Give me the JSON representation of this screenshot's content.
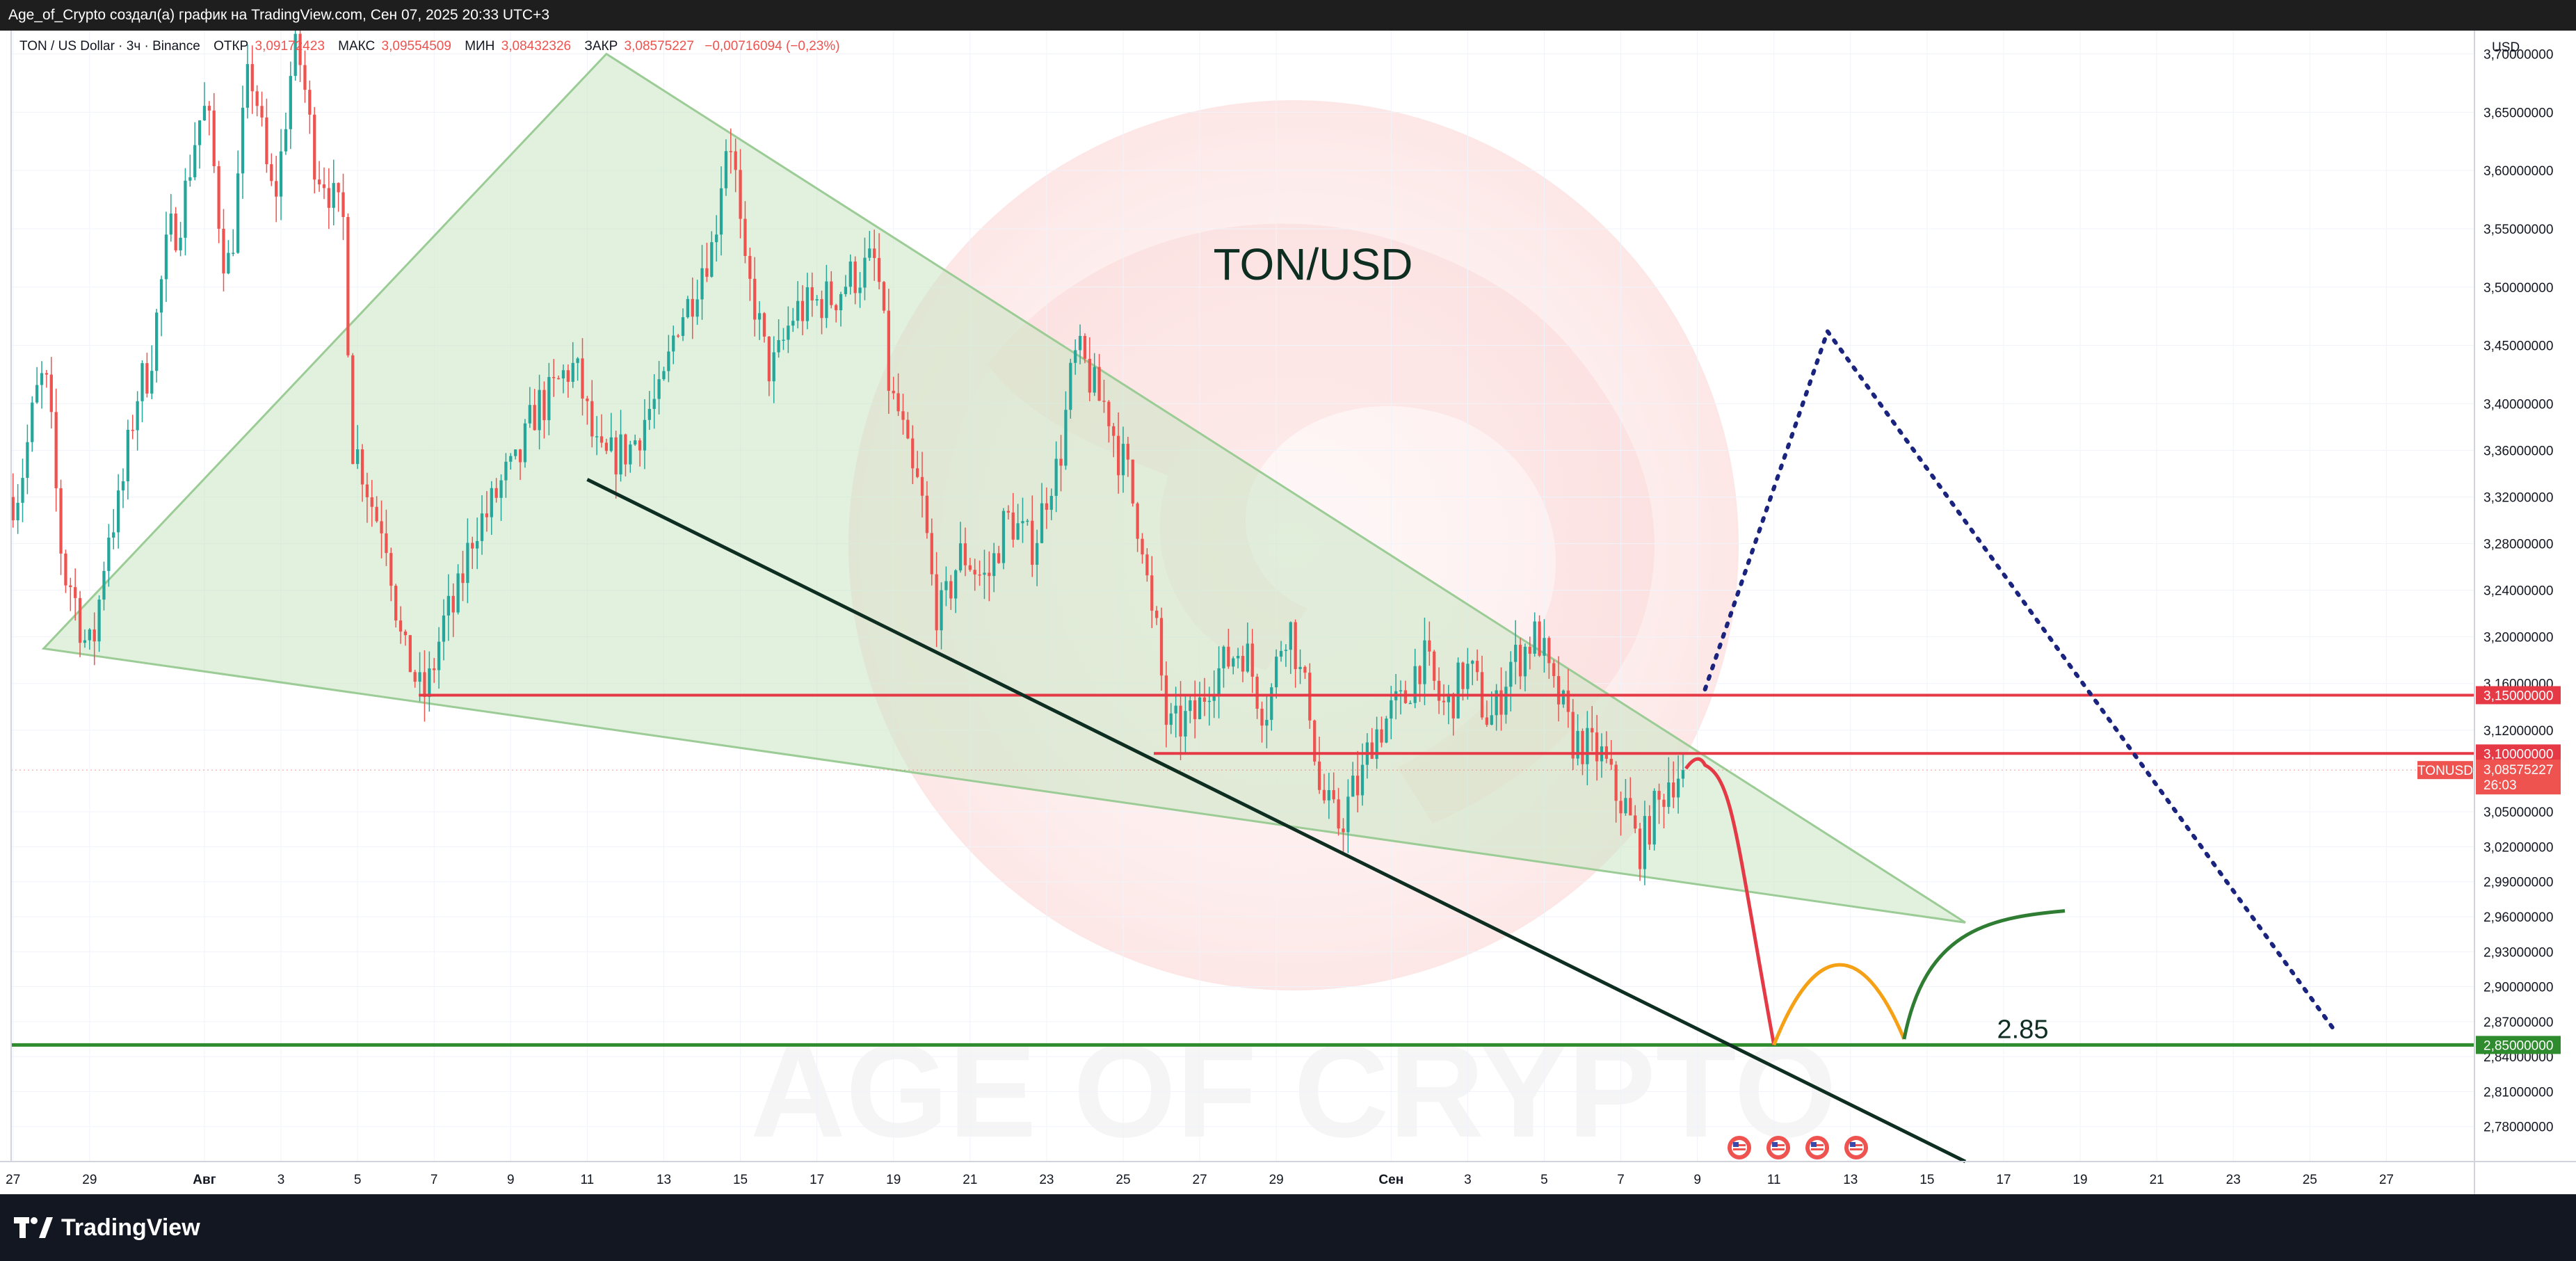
{
  "header": {
    "attribution": "Age_of_Crypto создал(а) график на TradingView.com, Сен 07, 2025 20:33 UTC+3"
  },
  "legend": {
    "symbol": "TON / US Dollar · 3ч · Binance",
    "open_label": "ОТКР",
    "open_value": "3,09172423",
    "high_label": "МАКС",
    "high_value": "3,09554509",
    "low_label": "МИН",
    "low_value": "3,08432326",
    "close_label": "ЗАКР",
    "close_value": "3,08575227",
    "change": "−0,00716094 (−0,23%)"
  },
  "currency_label": "USD",
  "colors": {
    "up": "#26a69a",
    "down": "#ef5350",
    "triangle_fill": "#c8e6c3",
    "triangle_stroke": "#9ccc96",
    "resistance": "#e53945",
    "support": "#2e8b2e",
    "trendline": "#0e2e22",
    "projection_red": "#e53945",
    "projection_orange": "#f5a015",
    "projection_green": "#2e7d32",
    "projection_blue": "#1a237e"
  },
  "chart_data": {
    "type": "line",
    "title": "TON/USD",
    "watermark": "AGE OF CRYPTO",
    "ylim": [
      2.75,
      3.72
    ],
    "y_ticks": [
      "3,70000000",
      "3,65000000",
      "3,60000000",
      "3,55000000",
      "3,50000000",
      "3,45000000",
      "3,40000000",
      "3,36000000",
      "3,32000000",
      "3,28000000",
      "3,24000000",
      "3,20000000",
      "3,16000000",
      "3,12000000",
      "3,05000000",
      "3,02000000",
      "2,99000000",
      "2,96000000",
      "2,93000000",
      "2,90000000",
      "2,87000000",
      "2,84000000",
      "2,81000000",
      "2,78000000"
    ],
    "y_tick_values": [
      3.7,
      3.65,
      3.6,
      3.55,
      3.5,
      3.45,
      3.4,
      3.36,
      3.32,
      3.28,
      3.24,
      3.2,
      3.16,
      3.12,
      3.05,
      3.02,
      2.99,
      2.96,
      2.93,
      2.9,
      2.87,
      2.84,
      2.81,
      2.78
    ],
    "x_ticks": [
      "27",
      "29",
      "Авг",
      "3",
      "5",
      "7",
      "9",
      "11",
      "13",
      "15",
      "17",
      "19",
      "21",
      "23",
      "25",
      "27",
      "29",
      "Сен",
      "3",
      "5",
      "7",
      "9",
      "11",
      "13",
      "15",
      "17",
      "19",
      "21",
      "23",
      "25",
      "27"
    ],
    "x_tick_days": [
      -5,
      -3,
      0,
      2,
      4,
      6,
      8,
      10,
      12,
      14,
      16,
      18,
      20,
      22,
      24,
      26,
      28,
      31,
      33,
      35,
      37,
      39,
      41,
      43,
      45,
      47,
      49,
      51,
      53,
      55,
      57
    ],
    "x_range_days": [
      -5.05,
      59.3
    ],
    "price_anchors": [
      [
        -5.0,
        3.32
      ],
      [
        -4.2,
        3.42
      ],
      [
        -3.6,
        3.25
      ],
      [
        -3.0,
        3.19
      ],
      [
        -2.4,
        3.3
      ],
      [
        -1.6,
        3.42
      ],
      [
        -0.8,
        3.55
      ],
      [
        0.0,
        3.65
      ],
      [
        0.6,
        3.52
      ],
      [
        1.2,
        3.68
      ],
      [
        1.8,
        3.58
      ],
      [
        2.4,
        3.7
      ],
      [
        3.0,
        3.6
      ],
      [
        3.6,
        3.56
      ],
      [
        3.9,
        3.36
      ],
      [
        4.6,
        3.3
      ],
      [
        5.3,
        3.18
      ],
      [
        5.7,
        3.15
      ],
      [
        6.4,
        3.22
      ],
      [
        7.2,
        3.3
      ],
      [
        8.0,
        3.34
      ],
      [
        8.8,
        3.4
      ],
      [
        9.6,
        3.43
      ],
      [
        10.4,
        3.35
      ],
      [
        11.0,
        3.36
      ],
      [
        11.8,
        3.4
      ],
      [
        12.5,
        3.48
      ],
      [
        13.2,
        3.53
      ],
      [
        13.7,
        3.63
      ],
      [
        14.2,
        3.5
      ],
      [
        14.8,
        3.43
      ],
      [
        15.5,
        3.48
      ],
      [
        16.3,
        3.49
      ],
      [
        17.0,
        3.51
      ],
      [
        17.5,
        3.52
      ],
      [
        18.0,
        3.4
      ],
      [
        18.6,
        3.33
      ],
      [
        19.2,
        3.22
      ],
      [
        19.8,
        3.27
      ],
      [
        20.4,
        3.25
      ],
      [
        21.0,
        3.3
      ],
      [
        21.6,
        3.28
      ],
      [
        22.2,
        3.34
      ],
      [
        22.8,
        3.44
      ],
      [
        23.5,
        3.4
      ],
      [
        24.0,
        3.35
      ],
      [
        24.4,
        3.3
      ],
      [
        24.8,
        3.21
      ],
      [
        25.2,
        3.12
      ],
      [
        25.8,
        3.13
      ],
      [
        26.4,
        3.17
      ],
      [
        27.1,
        3.19
      ],
      [
        27.7,
        3.14
      ],
      [
        28.3,
        3.21
      ],
      [
        28.8,
        3.15
      ],
      [
        29.2,
        3.06
      ],
      [
        29.6,
        3.04
      ],
      [
        30.1,
        3.07
      ],
      [
        30.6,
        3.12
      ],
      [
        31.2,
        3.14
      ],
      [
        31.8,
        3.18
      ],
      [
        32.4,
        3.14
      ],
      [
        33.0,
        3.17
      ],
      [
        33.6,
        3.13
      ],
      [
        34.2,
        3.18
      ],
      [
        34.8,
        3.2
      ],
      [
        35.3,
        3.15
      ],
      [
        35.8,
        3.11
      ],
      [
        36.4,
        3.1
      ],
      [
        37.0,
        3.06
      ],
      [
        37.5,
        3.02
      ],
      [
        37.9,
        3.05
      ],
      [
        38.3,
        3.08
      ],
      [
        38.7,
        3.087
      ]
    ],
    "last_price": 3.08575227,
    "last_price_label": "3,08575227",
    "price_tag_symbol": "TONUSD",
    "price_tag_timer": "26:03",
    "levels": [
      {
        "value": 3.15,
        "label": "3,15000000",
        "from_day": 5.6
      },
      {
        "value": 3.1,
        "label": "3,10000000",
        "from_day": 24.8
      },
      {
        "value": 2.85,
        "label": "2,85000000",
        "from_day": -5.05
      }
    ],
    "support_annotation": "2.85",
    "triangle": [
      [
        -4.2,
        3.19
      ],
      [
        10.5,
        3.7
      ],
      [
        46.0,
        2.955
      ]
    ],
    "trendline": [
      [
        10.0,
        3.335
      ],
      [
        46.0,
        2.75
      ]
    ],
    "projections": {
      "red": [
        [
          38.7,
          3.087
        ],
        [
          39.2,
          3.09
        ],
        [
          40.0,
          3.03
        ],
        [
          41.0,
          2.85
        ]
      ],
      "orange": [
        [
          41.0,
          2.85
        ],
        [
          42.5,
          2.905
        ],
        [
          44.4,
          2.855
        ]
      ],
      "green": [
        [
          44.4,
          2.855
        ],
        [
          46.5,
          2.94
        ],
        [
          48.6,
          2.965
        ]
      ],
      "blue_dotted": [
        [
          39.2,
          3.155
        ],
        [
          42.4,
          3.462
        ],
        [
          55.7,
          2.86
        ]
      ]
    }
  }
}
